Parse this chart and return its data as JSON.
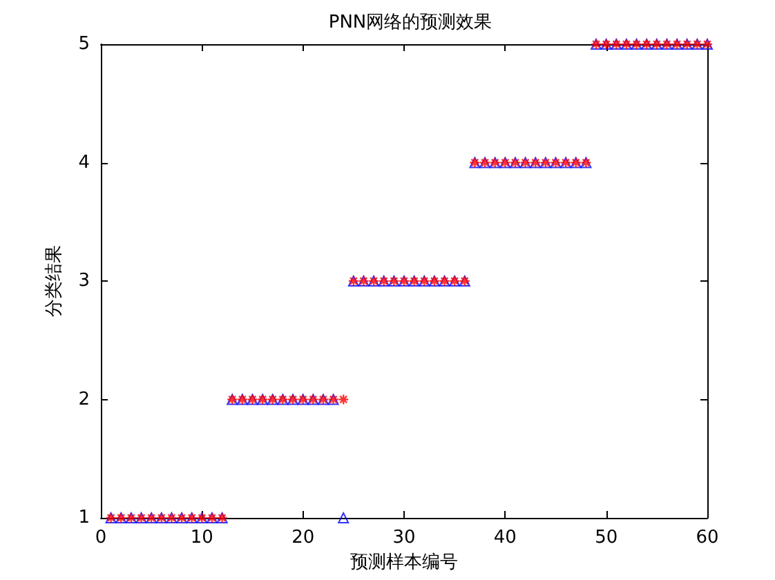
{
  "chart_data": {
    "type": "scatter",
    "title": "PNN网络的预测效果",
    "xlabel": "预测样本编号",
    "ylabel": "分类结果",
    "x": [
      1,
      2,
      3,
      4,
      5,
      6,
      7,
      8,
      9,
      10,
      11,
      12,
      13,
      14,
      15,
      16,
      17,
      18,
      19,
      20,
      21,
      22,
      23,
      24,
      25,
      26,
      27,
      28,
      29,
      30,
      31,
      32,
      33,
      34,
      35,
      36,
      37,
      38,
      39,
      40,
      41,
      42,
      43,
      44,
      45,
      46,
      47,
      48,
      49,
      50,
      51,
      52,
      53,
      54,
      55,
      56,
      57,
      58,
      59,
      60
    ],
    "series": [
      {
        "color": "#0000ff",
        "marker": "triangle",
        "values": [
          1,
          1,
          1,
          1,
          1,
          1,
          1,
          1,
          1,
          1,
          1,
          1,
          2,
          2,
          2,
          2,
          2,
          2,
          2,
          2,
          2,
          2,
          2,
          1,
          3,
          3,
          3,
          3,
          3,
          3,
          3,
          3,
          3,
          3,
          3,
          3,
          4,
          4,
          4,
          4,
          4,
          4,
          4,
          4,
          4,
          4,
          4,
          4,
          5,
          5,
          5,
          5,
          5,
          5,
          5,
          5,
          5,
          5,
          5,
          5
        ]
      },
      {
        "color": "#ff0000",
        "marker": "cross",
        "values": [
          1,
          1,
          1,
          1,
          1,
          1,
          1,
          1,
          1,
          1,
          1,
          1,
          2,
          2,
          2,
          2,
          2,
          2,
          2,
          2,
          2,
          2,
          2,
          2,
          3,
          3,
          3,
          3,
          3,
          3,
          3,
          3,
          3,
          3,
          3,
          3,
          4,
          4,
          4,
          4,
          4,
          4,
          4,
          4,
          4,
          4,
          4,
          4,
          5,
          5,
          5,
          5,
          5,
          5,
          5,
          5,
          5,
          5,
          5,
          5
        ]
      }
    ],
    "xlim": [
      0,
      60
    ],
    "xticks": [
      0,
      10,
      20,
      30,
      40,
      50,
      60
    ],
    "ylim": [
      1,
      5
    ],
    "yticks": [
      1,
      2,
      3,
      4,
      5
    ],
    "grid": false
  }
}
